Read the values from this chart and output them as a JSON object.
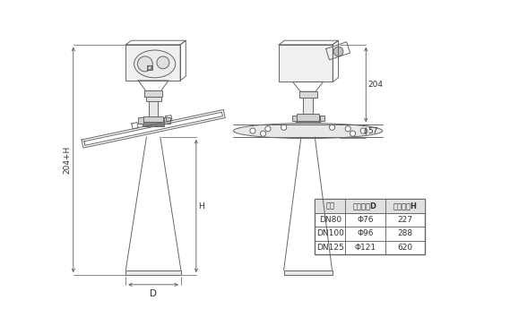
{
  "background_color": "#ffffff",
  "line_color": "#666666",
  "fill_light": "#e8e8e8",
  "fill_mid": "#d0d0d0",
  "table_data": {
    "headers": [
      "法兰",
      "湋口直径D",
      "湋口高度H"
    ],
    "rows": [
      [
        "DN80",
        "Φ76",
        "227"
      ],
      [
        "DN100",
        "Φ96",
        "288"
      ],
      [
        "DN125",
        "Φ121",
        "620"
      ]
    ]
  },
  "dim_204": "204",
  "dim_57": "57",
  "dim_H": "H",
  "dim_204H": "204+H",
  "dim_D": "D",
  "text_color": "#333333",
  "font_size": 6.5
}
